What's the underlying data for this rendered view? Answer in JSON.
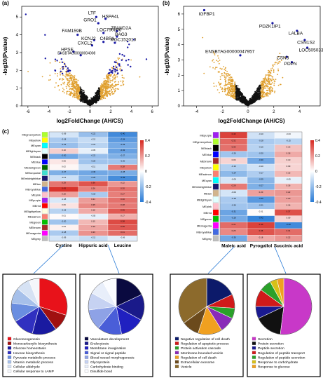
{
  "panel_labels": {
    "a": "(a)",
    "b": "(b)",
    "c": "(c)"
  },
  "colors": {
    "sig": "#1a1aa6",
    "fc": "#e0a030",
    "ns": "#111111",
    "heat_low": "#2a7bd6",
    "heat_mid": "#ffffff",
    "heat_high": "#d72a22"
  },
  "volcano_a": {
    "xlabel": "log2FoldChange (AH/CS)",
    "ylabel": "-log10(Pvalue)",
    "x_ticks": [
      "-6",
      "-4",
      "-2",
      "0",
      "2",
      "4",
      "6"
    ],
    "y_ticks": [
      "0",
      "1",
      "2",
      "3",
      "4",
      "5"
    ],
    "labels": [
      "LTF",
      "GRO1",
      "HSPA4L",
      "ZFAND2A",
      "LOC790896",
      "BAG3",
      "FAM159B",
      "KCNJ2",
      "C4BPA",
      "MGC152010",
      "CXCL2",
      "HPSE",
      "ENSBTAG00000004008"
    ]
  },
  "volcano_b": {
    "xlabel": "log2FoldChange (AH/CS)",
    "ylabel": "-log10(Pvalue)",
    "x_ticks": [
      "-4",
      "-2",
      "0",
      "2",
      "4"
    ],
    "y_ticks": [
      "0",
      "1",
      "2",
      "3",
      "4",
      "5",
      "6"
    ],
    "labels": [
      "IGFBP1",
      "PDZK1IP1",
      "LALBA",
      "CSN1S2",
      "LOC505033",
      "ENSBTAG00000047957",
      "CSN3",
      "PDPN"
    ]
  },
  "heatmap_left": {
    "columns": [
      "Cystine",
      "Hippuric acid",
      "Leucine"
    ],
    "rows": [
      "MEgreenyellow",
      "MEyellow",
      "MEcyan",
      "MElightcyan",
      "MEblack",
      "MEblue",
      "MEdarkgreen",
      "MEturquoise",
      "MEmidnightblue",
      "MEtan",
      "MEroyalblue",
      "MEpink",
      "MEpurple",
      "MEred",
      "MElightyellow",
      "MEsalmon",
      "MEgreen",
      "MEbrown",
      "MEmagenta",
      "MEgrey"
    ],
    "values": [
      [
        -0.09,
        -0.22,
        -0.4
      ],
      [
        -0.18,
        -0.12,
        -0.34
      ],
      [
        -0.22,
        -0.15,
        -0.29
      ],
      [
        0.1,
        -0.05,
        -0.32
      ],
      [
        -0.3,
        -0.22,
        -0.27
      ],
      [
        0.05,
        -0.2,
        -0.2
      ],
      [
        0.02,
        -0.11,
        0.28
      ],
      [
        -0.27,
        -0.3,
        -0.28
      ],
      [
        -0.11,
        -0.26,
        -0.39
      ],
      [
        0.29,
        0.36,
        0.22
      ],
      [
        0.43,
        0.26,
        0.3
      ],
      [
        0.2,
        -0.18,
        0.27
      ],
      [
        -0.08,
        0.21,
        0.3
      ],
      [
        0.06,
        0.25,
        0.28
      ],
      [
        -0.15,
        0.18,
        0.35
      ],
      [
        0.01,
        -0.05,
        0.17
      ],
      [
        -0.2,
        0.15,
        0.38
      ],
      [
        0.03,
        0.19,
        0.35
      ],
      [
        -0.18,
        0.23,
        0.31
      ],
      [
        -0.09,
        -0.12,
        -0.06
      ]
    ],
    "colorbar_ticks": [
      "0.4",
      "0.2",
      "0",
      "-0.2",
      "-0.4"
    ]
  },
  "heatmap_right": {
    "columns": [
      "Maleic acid",
      "Pyrogallol",
      "Succinic acid"
    ],
    "rows": [
      "MEpurple",
      "MEgreenyellow",
      "MEblack",
      "MEblue",
      "MEbrown",
      "MEyellow",
      "MEsalmon",
      "MEcyan",
      "MEmidnightblue",
      "MEtan",
      "MElightcyan",
      "MEpink",
      "MEred",
      "MEgreen",
      "MEmagenta",
      "MEroyalblue",
      "MEgrey"
    ],
    "values": [
      [
        0.4,
        -0.1,
        -0.03
      ],
      [
        0.32,
        -0.18,
        -0.15
      ],
      [
        0.3,
        -0.15,
        0.13
      ],
      [
        -0.2,
        -0.2,
        0.18
      ],
      [
        0.09,
        -0.3,
        0.1
      ],
      [
        -0.16,
        -0.1,
        0.09
      ],
      [
        -0.24,
        -0.17,
        0.15
      ],
      [
        -0.09,
        -0.25,
        -0.05
      ],
      [
        0.28,
        -0.27,
        0.16
      ],
      [
        -0.09,
        0.2,
        0.22
      ],
      [
        -0.18,
        -0.35,
        0.2
      ],
      [
        -0.2,
        -0.21,
        0.16
      ],
      [
        -0.31,
        0.01,
        0.37
      ],
      [
        -0.29,
        -0.42,
        0.09
      ],
      [
        0.31,
        0.4,
        -0.4
      ],
      [
        0.25,
        0.36,
        0.31
      ],
      [
        -0.3,
        0.18,
        0.22
      ]
    ],
    "colorbar_ticks": [
      "0.4",
      "0.2",
      "0",
      "-0.2",
      "-0.4"
    ]
  },
  "pies": [
    {
      "legend": [
        "Gluconeogenesis",
        "Monocarboxylic biosynthesis",
        "Glucose homeostasis",
        "Hexose biosynthesis",
        "Pyruvate metabolic process",
        "Vitamin metabolic process",
        "Cellular aldehyde",
        "Cellular response to cAMP"
      ],
      "colors": [
        "#e8121a",
        "#a01010",
        "#1a1aa0",
        "#3030c0",
        "#6a8ee0",
        "#a6c0ea",
        "#d6e2f4",
        "#f4f6fb"
      ],
      "values": [
        30,
        10,
        14,
        12,
        11,
        9,
        8,
        6
      ]
    },
    {
      "legend": [
        "Vasculature development",
        "Endocytosis",
        "Membrane invagination",
        "Signal or signal peptide",
        "Blood vessel morphogenesis",
        "Glycoprotein",
        "Carbohydrate binding",
        "Disulfide bond"
      ],
      "colors": [
        "#0a0a40",
        "#1a1a8a",
        "#2020c0",
        "#4a5ed8",
        "#8ea2e6",
        "#c6d2f2",
        "#e8eefa",
        "#fbfcff"
      ],
      "values": [
        18,
        15,
        14,
        14,
        12,
        10,
        9,
        8
      ]
    },
    {
      "legend": [
        "Negative regulation of cell death",
        "Regulation of apoptotic process",
        "Protein activation cascade",
        "Membrane-bounded vesicle",
        "Regulation of cell death",
        "Extracellular exosome",
        "Vesicle"
      ],
      "colors": [
        "#0c1a6a",
        "#d01a1a",
        "#2aa02a",
        "#8a2ab8",
        "#f0a020",
        "#6b4a1c",
        "#8c6a2c"
      ],
      "values": [
        18,
        8,
        6,
        9,
        14,
        10,
        35
      ]
    },
    {
      "legend": [
        "Secretion",
        "Protein secretion",
        "Peptide secretion",
        "Regulation of peptide transport",
        "Regulation of peptide secretion",
        "Response to carbohydrate",
        "Response to glucose"
      ],
      "colors": [
        "#c838c8",
        "#111111",
        "#1a1a90",
        "#d01a1a",
        "#2aa02a",
        "#d8c018",
        "#f0a020"
      ],
      "values": [
        52,
        16,
        7,
        10,
        7,
        4,
        4
      ]
    }
  ]
}
